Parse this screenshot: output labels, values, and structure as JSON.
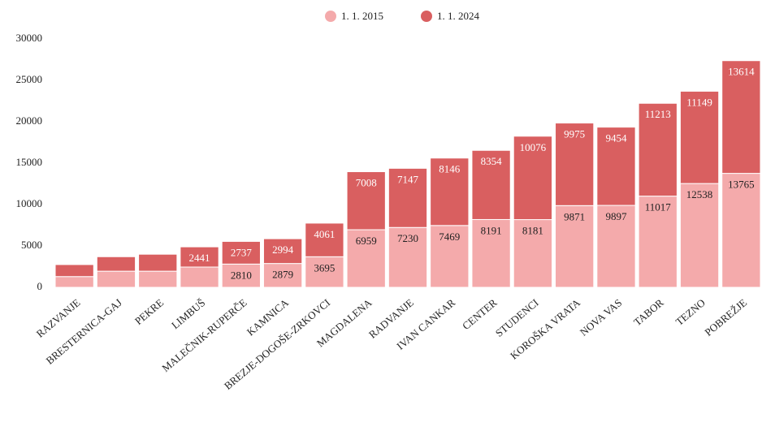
{
  "chart_data": {
    "type": "stacked_bar",
    "categories": [
      "RAZVANJE",
      "BRESTERNICA-GAJ",
      "PEKRE",
      "LIMBUŠ",
      "MALEČNIK-RUPERČE",
      "KAMNICA",
      "BREZJE-DOGOŠE-ZRKOVCI",
      "MAGDALENA",
      "RADVANJE",
      "IVAN CANKAR",
      "CENTER",
      "STUDENCI",
      "KOROŠKA VRATA",
      "NOVA VAS",
      "TABOR",
      "TEZNO",
      "POBREŽJE"
    ],
    "series": [
      {
        "name": "1. 1. 2015",
        "color": "#f4aaab",
        "values": [
          1300,
          1950,
          1950,
          2450,
          2810,
          2879,
          3695,
          6959,
          7230,
          7469,
          8191,
          8181,
          9871,
          9897,
          11017,
          12538,
          13765
        ],
        "value_labels": [
          null,
          null,
          null,
          null,
          "2810",
          "2879",
          "3695",
          "6959",
          "7230",
          "7469",
          "8191",
          "8181",
          "9871",
          "9897",
          "11017",
          "12538",
          "13765"
        ]
      },
      {
        "name": "1. 1. 2024",
        "color": "#d95f60",
        "values": [
          1450,
          1750,
          2050,
          2441,
          2737,
          2994,
          4061,
          7008,
          7147,
          8146,
          8354,
          10076,
          9975,
          9454,
          11213,
          11149,
          13614
        ],
        "value_labels": [
          null,
          null,
          null,
          "2441",
          "2737",
          "2994",
          "4061",
          "7008",
          "7147",
          "8146",
          "8354",
          "10076",
          "9975",
          "9454",
          "11213",
          "11149",
          "13614"
        ]
      }
    ],
    "ylim": [
      0,
      30000
    ],
    "yticks": [
      0,
      5000,
      10000,
      15000,
      20000,
      25000,
      30000
    ],
    "grid": false,
    "legend": "top"
  }
}
